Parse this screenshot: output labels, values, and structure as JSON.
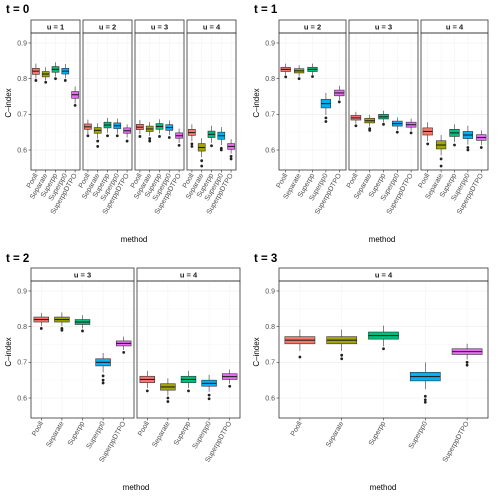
{
  "colors": {
    "Pooll": "#F8766D",
    "Separate": "#A3A500",
    "Superpp": "#00BF7D",
    "Superpp0": "#00B0F6",
    "SuperppDTPO": "#E76BF3"
  },
  "chart_data": [
    {
      "type": "box",
      "title": "t = 0",
      "xlabel": "method",
      "ylabel": "C–index",
      "ylim": [
        0.5,
        0.95
      ],
      "yticks": [
        "0.6",
        "0.7",
        "0.8",
        "0.9"
      ],
      "categories": [
        "Pooll",
        "Separate",
        "Superpp",
        "Superpp0",
        "SuperppDTPO"
      ],
      "facets": [
        {
          "strip": "u = 1",
          "boxes": [
            {
              "q1": 0.812,
              "med": 0.821,
              "q3": 0.829,
              "lo": 0.8,
              "hi": 0.842,
              "out": [
                0.795
              ]
            },
            {
              "q1": 0.805,
              "med": 0.813,
              "q3": 0.82,
              "lo": 0.795,
              "hi": 0.832,
              "out": [
                0.79
              ]
            },
            {
              "q1": 0.818,
              "med": 0.826,
              "q3": 0.834,
              "lo": 0.806,
              "hi": 0.846,
              "out": [
                0.8
              ]
            },
            {
              "q1": 0.813,
              "med": 0.821,
              "q3": 0.829,
              "lo": 0.801,
              "hi": 0.841,
              "out": [
                0.795
              ]
            },
            {
              "q1": 0.745,
              "med": 0.755,
              "q3": 0.764,
              "lo": 0.73,
              "hi": 0.778,
              "out": [
                0.725
              ]
            }
          ]
        },
        {
          "strip": "u = 2",
          "boxes": [
            {
              "q1": 0.658,
              "med": 0.665,
              "q3": 0.673,
              "lo": 0.645,
              "hi": 0.685,
              "out": [
                0.64
              ]
            },
            {
              "q1": 0.647,
              "med": 0.655,
              "q3": 0.663,
              "lo": 0.632,
              "hi": 0.675,
              "out": [
                0.625,
                0.61
              ]
            },
            {
              "q1": 0.662,
              "med": 0.67,
              "q3": 0.678,
              "lo": 0.648,
              "hi": 0.69,
              "out": [
                0.64
              ]
            },
            {
              "q1": 0.66,
              "med": 0.668,
              "q3": 0.676,
              "lo": 0.646,
              "hi": 0.688,
              "out": [
                0.64
              ]
            },
            {
              "q1": 0.647,
              "med": 0.654,
              "q3": 0.662,
              "lo": 0.635,
              "hi": 0.672,
              "out": [
                0.625
              ]
            }
          ]
        },
        {
          "strip": "u = 3",
          "boxes": [
            {
              "q1": 0.657,
              "med": 0.664,
              "q3": 0.672,
              "lo": 0.645,
              "hi": 0.684,
              "out": [
                0.638
              ]
            },
            {
              "q1": 0.652,
              "med": 0.659,
              "q3": 0.667,
              "lo": 0.64,
              "hi": 0.678,
              "out": [
                0.632,
                0.625
              ]
            },
            {
              "q1": 0.658,
              "med": 0.666,
              "q3": 0.674,
              "lo": 0.646,
              "hi": 0.686,
              "out": [
                0.638
              ]
            },
            {
              "q1": 0.655,
              "med": 0.663,
              "q3": 0.671,
              "lo": 0.642,
              "hi": 0.683,
              "out": [
                0.635
              ]
            },
            {
              "q1": 0.633,
              "med": 0.64,
              "q3": 0.648,
              "lo": 0.62,
              "hi": 0.66,
              "out": [
                0.613
              ]
            }
          ]
        },
        {
          "strip": "u = 4",
          "boxes": [
            {
              "q1": 0.641,
              "med": 0.649,
              "q3": 0.658,
              "lo": 0.625,
              "hi": 0.672,
              "out": [
                0.617,
                0.61
              ]
            },
            {
              "q1": 0.597,
              "med": 0.607,
              "q3": 0.618,
              "lo": 0.58,
              "hi": 0.633,
              "out": [
                0.57,
                0.555
              ]
            },
            {
              "q1": 0.635,
              "med": 0.644,
              "q3": 0.653,
              "lo": 0.62,
              "hi": 0.668,
              "out": [
                0.612
              ]
            },
            {
              "q1": 0.63,
              "med": 0.64,
              "q3": 0.65,
              "lo": 0.614,
              "hi": 0.664,
              "out": [
                0.605,
                0.6
              ]
            },
            {
              "q1": 0.602,
              "med": 0.61,
              "q3": 0.618,
              "lo": 0.59,
              "hi": 0.63,
              "out": [
                0.582,
                0.575
              ]
            }
          ]
        }
      ]
    },
    {
      "type": "box",
      "title": "t = 1",
      "xlabel": "method",
      "ylabel": "C–index",
      "ylim": [
        0.5,
        0.95
      ],
      "yticks": [
        "0.6",
        "0.7",
        "0.8",
        "0.9"
      ],
      "categories": [
        "Pooll",
        "Separate",
        "Superpp",
        "Superpp0",
        "SuperppDTPO"
      ],
      "facets": [
        {
          "strip": "u = 2",
          "boxes": [
            {
              "q1": 0.82,
              "med": 0.826,
              "q3": 0.832,
              "lo": 0.81,
              "hi": 0.842,
              "out": [
                0.805
              ]
            },
            {
              "q1": 0.816,
              "med": 0.822,
              "q3": 0.828,
              "lo": 0.806,
              "hi": 0.838,
              "out": [
                0.8
              ]
            },
            {
              "q1": 0.82,
              "med": 0.826,
              "q3": 0.832,
              "lo": 0.81,
              "hi": 0.842,
              "out": [
                0.806
              ]
            },
            {
              "q1": 0.718,
              "med": 0.73,
              "q3": 0.742,
              "lo": 0.698,
              "hi": 0.76,
              "out": [
                0.69,
                0.68
              ]
            },
            {
              "q1": 0.752,
              "med": 0.76,
              "q3": 0.768,
              "lo": 0.74,
              "hi": 0.78,
              "out": [
                0.735
              ]
            }
          ]
        },
        {
          "strip": "u = 3",
          "boxes": [
            {
              "q1": 0.684,
              "med": 0.69,
              "q3": 0.697,
              "lo": 0.674,
              "hi": 0.707,
              "out": [
                0.668
              ]
            },
            {
              "q1": 0.676,
              "med": 0.682,
              "q3": 0.689,
              "lo": 0.666,
              "hi": 0.699,
              "out": [
                0.66,
                0.655
              ]
            },
            {
              "q1": 0.687,
              "med": 0.693,
              "q3": 0.7,
              "lo": 0.677,
              "hi": 0.71,
              "out": [
                0.672
              ]
            },
            {
              "q1": 0.667,
              "med": 0.674,
              "q3": 0.681,
              "lo": 0.656,
              "hi": 0.691,
              "out": [
                0.65
              ]
            },
            {
              "q1": 0.664,
              "med": 0.671,
              "q3": 0.678,
              "lo": 0.654,
              "hi": 0.688,
              "out": [
                0.648
              ]
            }
          ]
        },
        {
          "strip": "u = 4",
          "boxes": [
            {
              "q1": 0.642,
              "med": 0.652,
              "q3": 0.662,
              "lo": 0.625,
              "hi": 0.678,
              "out": [
                0.617
              ]
            },
            {
              "q1": 0.603,
              "med": 0.614,
              "q3": 0.626,
              "lo": 0.585,
              "hi": 0.642,
              "out": [
                0.575,
                0.555
              ]
            },
            {
              "q1": 0.638,
              "med": 0.648,
              "q3": 0.658,
              "lo": 0.622,
              "hi": 0.672,
              "out": [
                0.614
              ]
            },
            {
              "q1": 0.632,
              "med": 0.642,
              "q3": 0.652,
              "lo": 0.615,
              "hi": 0.668,
              "out": [
                0.607,
                0.6
              ]
            },
            {
              "q1": 0.627,
              "med": 0.635,
              "q3": 0.643,
              "lo": 0.614,
              "hi": 0.655,
              "out": [
                0.607
              ]
            }
          ]
        }
      ]
    },
    {
      "type": "box",
      "title": "t = 2",
      "xlabel": "method",
      "ylabel": "C–index",
      "ylim": [
        0.5,
        0.95
      ],
      "yticks": [
        "0.6",
        "0.7",
        "0.8",
        "0.9"
      ],
      "categories": [
        "Pooll",
        "Separate",
        "Superpp",
        "Superpp0",
        "SuperppDTPO"
      ],
      "facets": [
        {
          "strip": "u = 3",
          "boxes": [
            {
              "q1": 0.813,
              "med": 0.82,
              "q3": 0.827,
              "lo": 0.802,
              "hi": 0.838,
              "out": [
                0.795
              ]
            },
            {
              "q1": 0.813,
              "med": 0.82,
              "q3": 0.827,
              "lo": 0.802,
              "hi": 0.84,
              "out": [
                0.795,
                0.79
              ]
            },
            {
              "q1": 0.806,
              "med": 0.813,
              "q3": 0.82,
              "lo": 0.795,
              "hi": 0.832,
              "out": [
                0.788
              ]
            },
            {
              "q1": 0.69,
              "med": 0.7,
              "q3": 0.71,
              "lo": 0.672,
              "hi": 0.726,
              "out": [
                0.662,
                0.65,
                0.642
              ]
            },
            {
              "q1": 0.746,
              "med": 0.753,
              "q3": 0.76,
              "lo": 0.735,
              "hi": 0.772,
              "out": [
                0.728
              ]
            }
          ]
        },
        {
          "strip": "u = 4",
          "boxes": [
            {
              "q1": 0.643,
              "med": 0.652,
              "q3": 0.661,
              "lo": 0.628,
              "hi": 0.676,
              "out": [
                0.62
              ]
            },
            {
              "q1": 0.622,
              "med": 0.631,
              "q3": 0.64,
              "lo": 0.607,
              "hi": 0.655,
              "out": [
                0.6,
                0.59
              ]
            },
            {
              "q1": 0.643,
              "med": 0.652,
              "q3": 0.661,
              "lo": 0.628,
              "hi": 0.676,
              "out": [
                0.62
              ]
            },
            {
              "q1": 0.633,
              "med": 0.641,
              "q3": 0.65,
              "lo": 0.617,
              "hi": 0.665,
              "out": [
                0.608,
                0.598
              ]
            },
            {
              "q1": 0.652,
              "med": 0.66,
              "q3": 0.668,
              "lo": 0.64,
              "hi": 0.68,
              "out": [
                0.633
              ]
            }
          ]
        }
      ]
    },
    {
      "type": "box",
      "title": "t = 3",
      "xlabel": "method",
      "ylabel": "C–index",
      "ylim": [
        0.5,
        0.95
      ],
      "yticks": [
        "0.6",
        "0.7",
        "0.8",
        "0.9"
      ],
      "categories": [
        "Pooll",
        "Separate",
        "Superpp",
        "Superpp0",
        "SuperppDTPO"
      ],
      "facets": [
        {
          "strip": "u = 4",
          "boxes": [
            {
              "q1": 0.752,
              "med": 0.762,
              "q3": 0.772,
              "lo": 0.732,
              "hi": 0.792,
              "out": [
                0.715
              ]
            },
            {
              "q1": 0.752,
              "med": 0.762,
              "q3": 0.772,
              "lo": 0.732,
              "hi": 0.792,
              "out": [
                0.72,
                0.71
              ]
            },
            {
              "q1": 0.765,
              "med": 0.775,
              "q3": 0.785,
              "lo": 0.745,
              "hi": 0.803,
              "out": [
                0.738
              ]
            },
            {
              "q1": 0.648,
              "med": 0.66,
              "q3": 0.672,
              "lo": 0.625,
              "hi": 0.7,
              "out": [
                0.605,
                0.595,
                0.588
              ]
            },
            {
              "q1": 0.722,
              "med": 0.73,
              "q3": 0.738,
              "lo": 0.708,
              "hi": 0.752,
              "out": [
                0.7,
                0.692
              ]
            }
          ]
        }
      ]
    }
  ]
}
